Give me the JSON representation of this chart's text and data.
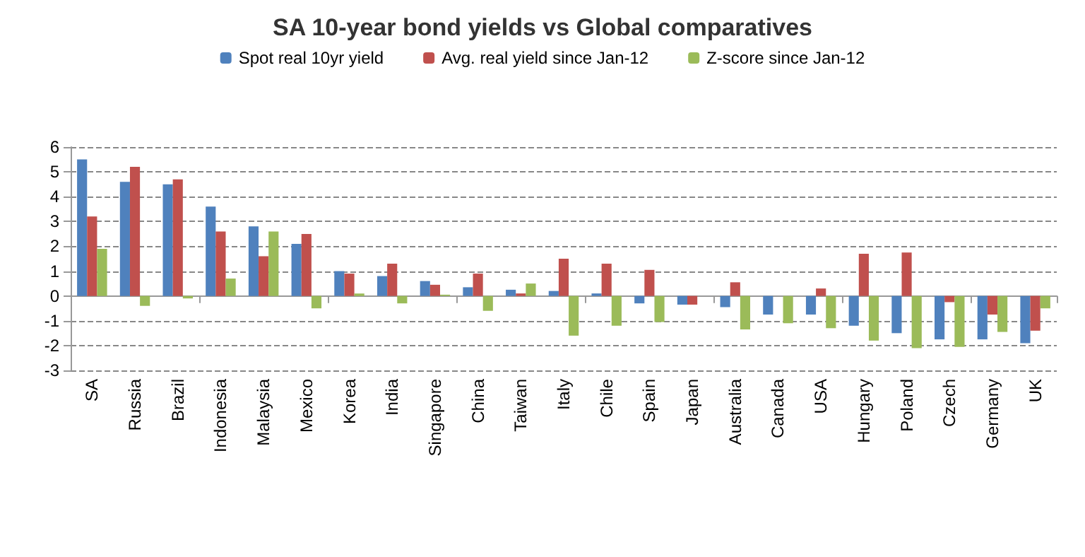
{
  "chart_data": {
    "type": "bar",
    "title": "SA 10-year bond yields vs Global comparatives",
    "categories": [
      "SA",
      "Russia",
      "Brazil",
      "Indonesia",
      "Malaysia",
      "Mexico",
      "Korea",
      "India",
      "Singapore",
      "China",
      "Taiwan",
      "Italy",
      "Chile",
      "Spain",
      "Japan",
      "Australia",
      "Canada",
      "USA",
      "Hungary",
      "Poland",
      "Czech",
      "Germany",
      "UK"
    ],
    "series": [
      {
        "name": "Spot real 10yr yield",
        "color": "#4f81bd",
        "values": [
          5.5,
          4.6,
          4.5,
          3.6,
          2.8,
          2.1,
          1.0,
          0.8,
          0.6,
          0.35,
          0.25,
          0.2,
          0.1,
          -0.3,
          -0.35,
          -0.45,
          -0.75,
          -0.75,
          -1.2,
          -1.5,
          -1.75,
          -1.75,
          -1.9
        ]
      },
      {
        "name": "Avg. real yield since Jan-12",
        "color": "#c0504d",
        "values": [
          3.2,
          5.2,
          4.7,
          2.6,
          1.6,
          2.5,
          0.9,
          1.3,
          0.45,
          0.9,
          0.1,
          1.5,
          1.3,
          1.05,
          -0.35,
          0.55,
          0,
          0.3,
          1.7,
          1.75,
          -0.25,
          -0.75,
          -1.4
        ]
      },
      {
        "name": "Z-score since Jan-12",
        "color": "#9bbb59",
        "values": [
          1.9,
          -0.4,
          -0.1,
          0.7,
          2.6,
          -0.5,
          0.1,
          -0.3,
          0.05,
          -0.6,
          0.5,
          -1.6,
          -1.2,
          -1.05,
          0,
          -1.35,
          -1.1,
          -1.3,
          -1.8,
          -2.1,
          -2.05,
          -1.45,
          -0.5
        ]
      }
    ],
    "ylim": [
      -3,
      6
    ],
    "yticks": [
      -3,
      -2,
      -1,
      0,
      1,
      2,
      3,
      4,
      5,
      6
    ],
    "grid": "y",
    "legend": "top"
  }
}
